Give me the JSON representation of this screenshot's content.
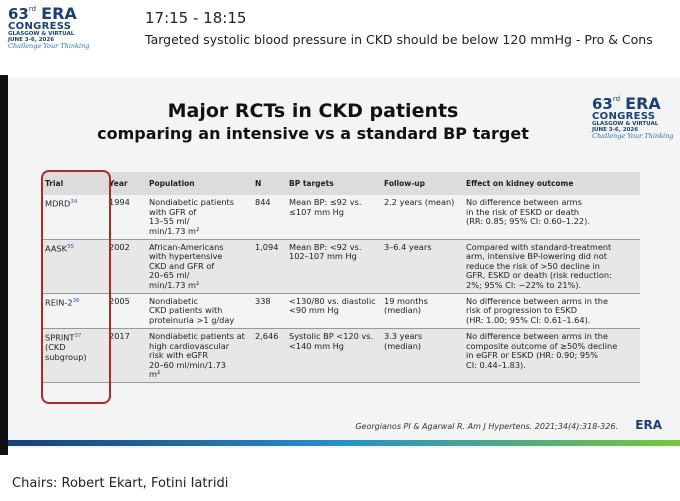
{
  "header": {
    "logo": {
      "number": "63",
      "ordinal": "rd",
      "name": "ERA",
      "line1": "CONGRESS",
      "line2": "GLASGOW & VIRTUAL",
      "line3": "JUNE 3-6, 2026",
      "slogan": "Challenge Your Thinking"
    },
    "time": "17:15 - 18:15",
    "session": "Targeted systolic blood pressure in CKD should be below 120 mmHg - Pro & Cons"
  },
  "slide": {
    "title": "Major RCTs in CKD patients",
    "subtitle": "comparing an intensive vs a standard BP target",
    "table": {
      "columns": [
        "Trial",
        "Year",
        "Population",
        "N",
        "BP targets",
        "Follow-up",
        "Effect on kidney outcome"
      ],
      "rows": [
        [
          {
            "name": "MDRD",
            "ref": "34"
          },
          "1994",
          "Nondiabetic patients\nwith GFR of\n13–55 ml/\nmin/1.73 m²",
          "844",
          "Mean BP: ≤92 vs.\n≤107 mm Hg",
          "2.2 years (mean)",
          "No difference between arms\nin the risk of ESKD or death\n(RR: 0.85; 95% CI: 0.60–1.22)."
        ],
        [
          {
            "name": "AASK",
            "ref": "35"
          },
          "2002",
          "African-Americans\nwith hypertensive\nCKD and GFR of\n20–65 ml/\nmin/1.73 m²",
          "1,094",
          "Mean BP: <92 vs.\n102–107 mm Hg",
          "3–6.4 years",
          "Compared with standard-treatment\narm, intensive BP-lowering did not\nreduce the risk of >50 decline in\nGFR, ESKD or death (risk reduction:\n2%; 95% CI: −22% to 21%)."
        ],
        [
          {
            "name": "REIN-2",
            "ref": "36"
          },
          "2005",
          "Nondiabetic\nCKD patients with\nproteinuria >1 g/day",
          "338",
          "<130/80 vs. diastolic\n<90 mm Hg",
          "19 months\n(median)",
          "No difference between arms in the\nrisk of progression to ESKD\n(HR: 1.00; 95% CI: 0.61–1.64)."
        ],
        [
          {
            "name": "SPRINT",
            "ref": "37",
            "note": "(CKD\nsubgroup)"
          },
          "2017",
          "Nondiabetic patients at\nhigh cardiovascular\nrisk with eGFR\n20–60 ml/min/1.73\nm²",
          "2,646",
          "Systolic BP <120 vs.\n<140 mm Hg",
          "3.3 years\n(median)",
          "No difference between arms in the\ncomposite outcome of ≥50% decline\nin eGFR or ESKD (HR: 0.90; 95%\nCI: 0.44–1.83)."
        ]
      ]
    },
    "citation": "Georgianos PI & Agarwal R. Am J Hypertens. 2021;34(4):318-326.",
    "footer_logo": "ERA"
  },
  "footer": {
    "chairs": "Chairs: Robert Ekart, Fotini Iatridi"
  }
}
